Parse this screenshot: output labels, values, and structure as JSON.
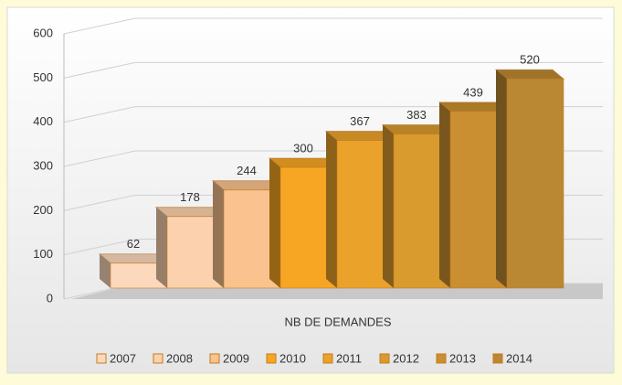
{
  "chart_data": {
    "type": "bar3d",
    "categories": [
      "NB DE DEMANDES"
    ],
    "series": [
      {
        "name": "2007",
        "color": "#fcd9bd",
        "values": [
          62
        ]
      },
      {
        "name": "2008",
        "color": "#fbd2ad",
        "values": [
          178
        ]
      },
      {
        "name": "2009",
        "color": "#f9c28e",
        "values": [
          244
        ]
      },
      {
        "name": "2010",
        "color": "#f6a623",
        "values": [
          300
        ]
      },
      {
        "name": "2011",
        "color": "#eaa22a",
        "values": [
          367
        ]
      },
      {
        "name": "2012",
        "color": "#d99a2e",
        "values": [
          383
        ]
      },
      {
        "name": "2013",
        "color": "#c98f30",
        "values": [
          439
        ]
      },
      {
        "name": "2014",
        "color": "#ba8832",
        "values": [
          520
        ]
      }
    ],
    "ylim": [
      0,
      600
    ],
    "yticks": [
      0,
      100,
      200,
      300,
      400,
      500,
      600
    ],
    "grid": true,
    "legend": "bottom"
  }
}
